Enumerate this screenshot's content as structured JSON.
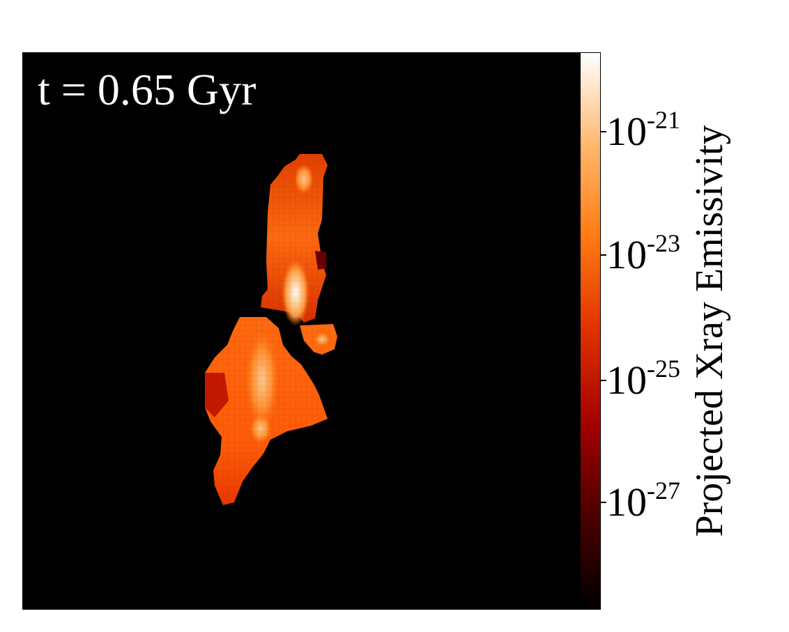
{
  "panel": {
    "time_label": "t = 0.65 Gyr",
    "background": "#000000"
  },
  "colorbar": {
    "label": "Projected Xray Emissivity",
    "colormap": "gist_heat",
    "scale": "log",
    "stops": [
      "#000000",
      "#4d0000",
      "#a30000",
      "#e03000",
      "#ff7b12",
      "#ffb66c",
      "#ffffff"
    ],
    "ticks": [
      {
        "base": "10",
        "exp": "-21"
      },
      {
        "base": "10",
        "exp": "-23"
      },
      {
        "base": "10",
        "exp": "-25"
      },
      {
        "base": "10",
        "exp": "-27"
      }
    ]
  }
}
